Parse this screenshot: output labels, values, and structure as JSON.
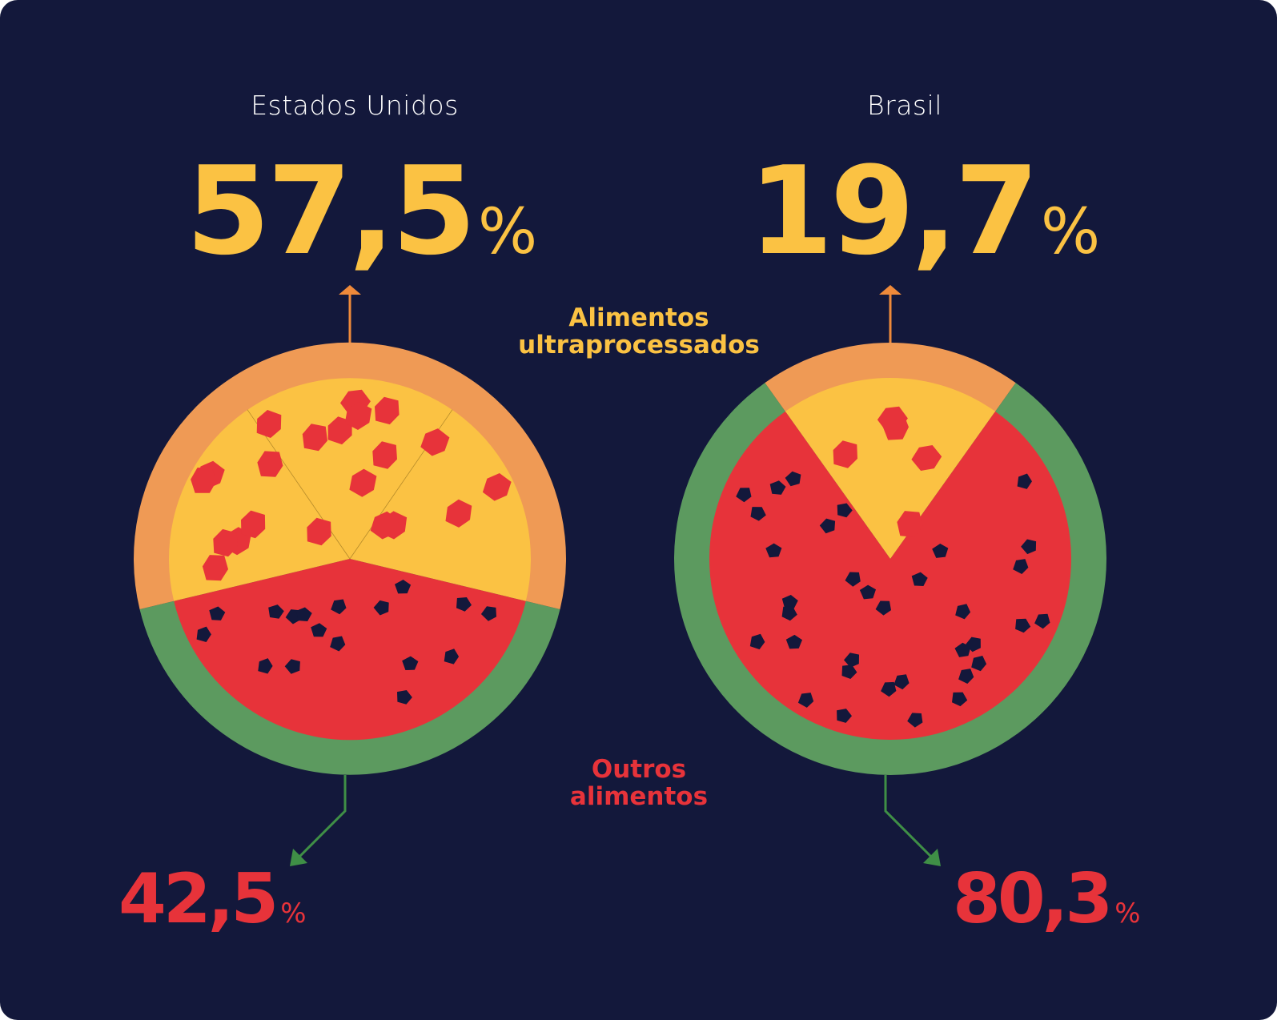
{
  "colors": {
    "background": "#13183b",
    "ultraprocessed": "#fbc243",
    "other": "#e7333a",
    "crust_top": "#ef9a55",
    "rind": "#5c9a5f",
    "pepperoni": "#e7333a",
    "seeds": "#13183b",
    "arrow_top": "#ef8a3a",
    "arrow_bottom": "#3f8f46",
    "label_top": "#fbc243",
    "label_bottom": "#e7333a"
  },
  "labels": {
    "ultra_line1": "Alimentos",
    "ultra_line2": "ultraprocessados",
    "other_line1": "Outros",
    "other_line2": "alimentos",
    "percent_sign": "%"
  },
  "chart_data": [
    {
      "type": "pie",
      "title": "Estados Unidos",
      "categories": [
        "Alimentos ultraprocessados",
        "Outros alimentos"
      ],
      "values": [
        57.5,
        42.5
      ],
      "value_labels": [
        "57,5",
        "42,5"
      ]
    },
    {
      "type": "pie",
      "title": "Brasil",
      "categories": [
        "Alimentos ultraprocessados",
        "Outros alimentos"
      ],
      "values": [
        19.7,
        80.3
      ],
      "value_labels": [
        "19,7",
        "80,3"
      ]
    }
  ]
}
